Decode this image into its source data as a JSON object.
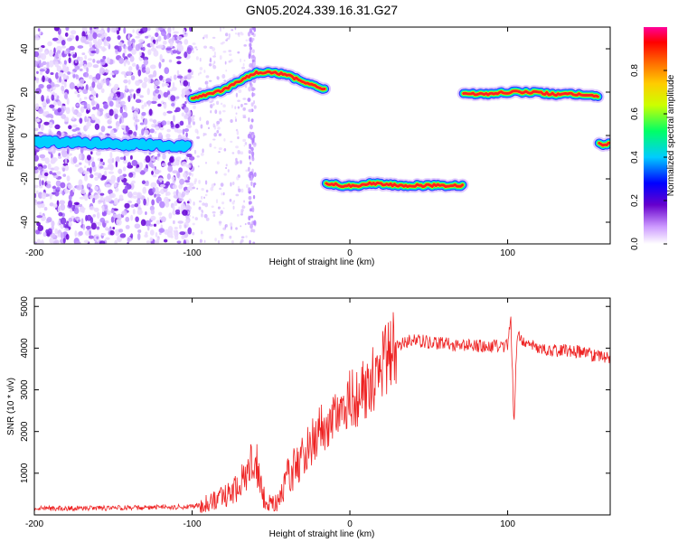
{
  "title": "GN05.2024.339.16.31.G27",
  "chart_data": [
    {
      "type": "heatmap",
      "title": "GN05.2024.339.16.31.G27",
      "xlabel": "Height of straight line (km)",
      "ylabel": "Frequency (Hz)",
      "xlim": [
        -200,
        165
      ],
      "ylim": [
        -50,
        50
      ],
      "x_ticks": [
        "-200",
        "-100",
        "0",
        "100"
      ],
      "y_ticks": [
        "-40",
        "-20",
        "0",
        "20",
        "40"
      ],
      "grid": false,
      "colorbar": {
        "label": "Normalized spectral amplitude",
        "range": [
          0,
          1
        ],
        "ticks": [
          "0.0",
          "0.2",
          "0.4",
          "0.6",
          "0.8"
        ],
        "colormap": "rainbow (white-purple-blue-cyan-green-yellow-orange-red-pink)"
      },
      "traces": [
        {
          "x": [
            -200,
            -185,
            -170,
            -150,
            -130,
            -110,
            -102
          ],
          "y": [
            -3,
            -3,
            -3,
            -4,
            -4,
            -5,
            -5
          ]
        },
        {
          "x": [
            -100,
            -90,
            -80,
            -70,
            -60,
            -50,
            -40,
            -30,
            -20,
            -15
          ],
          "y": [
            17,
            19,
            21,
            25,
            29,
            29,
            28,
            25,
            22,
            21
          ]
        },
        {
          "x": [
            -15,
            -5,
            5,
            15,
            30,
            50,
            72
          ],
          "y": [
            -22,
            -23,
            -23,
            -22,
            -23,
            -23,
            -23
          ]
        },
        {
          "x": [
            72,
            85,
            100,
            115,
            130,
            145,
            158
          ],
          "y": [
            19,
            19,
            20,
            20,
            19,
            19,
            18
          ]
        },
        {
          "x": [
            158,
            165
          ],
          "y": [
            -4,
            -4
          ]
        }
      ]
    },
    {
      "type": "line",
      "xlabel": "Height of straight line (km)",
      "ylabel": "SNR (10 * v/v)",
      "xlim": [
        -200,
        165
      ],
      "ylim": [
        0,
        5200
      ],
      "x_ticks": [
        "-200",
        "-100",
        "0",
        "100"
      ],
      "y_ticks": [
        "1000",
        "2000",
        "3000",
        "4000",
        "5000"
      ],
      "grid": false,
      "series": [
        {
          "color": "#ee2222",
          "x": [
            -200,
            -180,
            -160,
            -140,
            -120,
            -100,
            -90,
            -80,
            -70,
            -65,
            -60,
            -55,
            -50,
            -45,
            -40,
            -30,
            -20,
            -10,
            0,
            10,
            20,
            30,
            40,
            60,
            80,
            100,
            102,
            104,
            106,
            120,
            140,
            165
          ],
          "y": [
            150,
            160,
            160,
            170,
            180,
            200,
            280,
            450,
            700,
            1050,
            1400,
            450,
            230,
            300,
            850,
            1400,
            2000,
            2500,
            2750,
            2950,
            3600,
            4050,
            4200,
            4100,
            4050,
            4050,
            4700,
            2200,
            4300,
            3950,
            3950,
            3750
          ]
        }
      ]
    }
  ]
}
